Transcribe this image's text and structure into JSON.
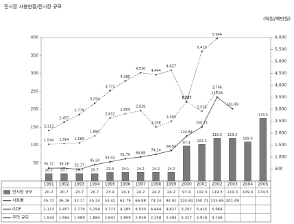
{
  "chart_data": {
    "type": "bar-line-table",
    "title": "전시장 사용현황/전시장 규모",
    "y2_label": "(억원/백만원)",
    "categories": [
      "1991",
      "1992",
      "1993",
      "1994",
      "1995",
      "1996",
      "1997",
      "1998",
      "1999",
      "2000",
      "2001",
      "2002",
      "2003",
      "2004",
      "2005"
    ],
    "ylim": [
      0,
      400
    ],
    "yticks": [
      50,
      100,
      150,
      200,
      250,
      300,
      350,
      400
    ],
    "y2lim": [
      0,
      6000
    ],
    "y2ticks": [
      {
        "value": 500,
        "label": "500"
      },
      {
        "value": 1000,
        "label": "1,000"
      },
      {
        "value": 1500,
        "label": "1,500"
      },
      {
        "value": 2000,
        "label": "2,000"
      },
      {
        "value": 2500,
        "label": "2,500"
      },
      {
        "value": 3000,
        "label": "3,000"
      },
      {
        "value": 3500,
        "label": "3,500"
      },
      {
        "value": 4000,
        "label": "4,000"
      },
      {
        "value": 4500,
        "label": "4,500"
      },
      {
        "value": 5000,
        "label": "5,000"
      },
      {
        "value": 5500,
        "label": "5,500"
      },
      {
        "value": 6000,
        "label": "6,000"
      }
    ],
    "series": [
      {
        "name": "전시장 규모",
        "type": "bar",
        "color": "#7a7a7a",
        "values": [
          20.2,
          20.7,
          20.7,
          20.7,
          23.9,
          24.1,
          24.2,
          24.2,
          24.2,
          97.4,
          102.3,
          119.3,
          119.3,
          109.0,
          174.5
        ],
        "value_labels": [
          "20.2",
          "20.7",
          "20.7",
          "20.7",
          "23.9",
          "24.1",
          "24.2",
          "24.2",
          "24.2",
          "97.4",
          "102.3",
          "119.3",
          "119.3",
          "109.0",
          "174.5"
        ]
      },
      {
        "name": "사용률",
        "type": "line",
        "color": "#222222",
        "values": [
          35.72,
          36.16,
          32.17,
          45.24,
          53.42,
          61.79,
          66.88,
          74.24,
          84.92,
          124.84,
          150.71,
          233.65,
          201.49,
          null,
          null
        ]
      },
      {
        "name": "GDP",
        "type": "line",
        "axis": "y2",
        "color": "#333333",
        "values": [
          2113,
          2457,
          2779,
          3254,
          3773,
          4185,
          4530,
          4444,
          4627,
          3297,
          5415,
          5964,
          null,
          null,
          null
        ],
        "value_labels": [
          "2,113",
          "2,457",
          "2,779",
          "3,254",
          "3,773",
          "4,185",
          "4,530",
          "4,444",
          "4,627",
          "3,297",
          "5,415",
          "5,964",
          null,
          null,
          null
        ]
      },
      {
        "name": "무역 규모",
        "type": "line",
        "axis": "y2",
        "color": "#555555",
        "values": [
          1534,
          1564,
          1589,
          1884,
          2632,
          2809,
          2939,
          2258,
          2494,
          3327,
          2916,
          3746,
          null,
          null,
          null
        ],
        "value_labels": [
          "1,534",
          "1,564",
          "1,589",
          "1,884",
          "2,632",
          "2,809",
          "2,939",
          "2,258",
          "2,494",
          "3,327",
          "2,916",
          "3,746",
          null,
          null,
          null
        ]
      }
    ]
  }
}
